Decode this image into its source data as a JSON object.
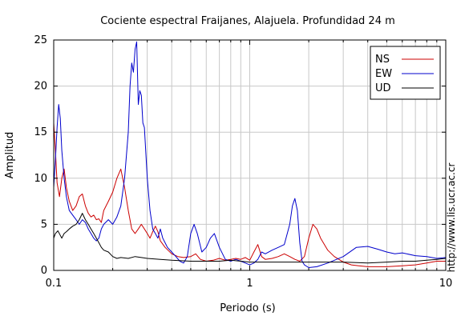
{
  "chart_data": {
    "type": "line",
    "title": "Cociente espectral Fraijanes, Alajuela. Profundidad 24 m",
    "xlabel": "Periodo (s)",
    "ylabel": "Amplitud",
    "xscale": "log",
    "xlim": [
      0.1,
      10
    ],
    "ylim": [
      0,
      25
    ],
    "grid": true,
    "legend_position": "top-right",
    "x_tick_labels": [
      {
        "value": 0.1,
        "label": "0.1"
      },
      {
        "value": 1,
        "label": "1"
      },
      {
        "value": 10,
        "label": "10"
      }
    ],
    "y_ticks": [
      0,
      5,
      10,
      15,
      20,
      25
    ],
    "y_tick_labels": [
      "0",
      "5",
      "10",
      "15",
      "20",
      "25"
    ],
    "side_note": "http://www.lis.ucr.ac.cr",
    "series": [
      {
        "name": "NS",
        "color": "#cc0000",
        "points": [
          [
            0.1,
            16.0
          ],
          [
            0.102,
            13.0
          ],
          [
            0.104,
            9.5
          ],
          [
            0.107,
            8.0
          ],
          [
            0.11,
            10.0
          ],
          [
            0.113,
            11.0
          ],
          [
            0.116,
            9.0
          ],
          [
            0.12,
            7.5
          ],
          [
            0.125,
            6.5
          ],
          [
            0.13,
            7.0
          ],
          [
            0.135,
            8.0
          ],
          [
            0.14,
            8.3
          ],
          [
            0.145,
            7.0
          ],
          [
            0.15,
            6.2
          ],
          [
            0.155,
            5.8
          ],
          [
            0.16,
            6.0
          ],
          [
            0.165,
            5.5
          ],
          [
            0.17,
            5.6
          ],
          [
            0.175,
            5.2
          ],
          [
            0.18,
            6.5
          ],
          [
            0.19,
            7.5
          ],
          [
            0.2,
            8.5
          ],
          [
            0.21,
            10.0
          ],
          [
            0.22,
            11.0
          ],
          [
            0.23,
            9.0
          ],
          [
            0.24,
            6.5
          ],
          [
            0.25,
            4.5
          ],
          [
            0.26,
            4.0
          ],
          [
            0.27,
            4.5
          ],
          [
            0.28,
            5.0
          ],
          [
            0.29,
            4.5
          ],
          [
            0.3,
            4.0
          ],
          [
            0.31,
            3.5
          ],
          [
            0.32,
            4.2
          ],
          [
            0.33,
            4.8
          ],
          [
            0.34,
            4.2
          ],
          [
            0.35,
            3.2
          ],
          [
            0.37,
            2.5
          ],
          [
            0.4,
            1.8
          ],
          [
            0.43,
            1.5
          ],
          [
            0.46,
            1.4
          ],
          [
            0.5,
            1.5
          ],
          [
            0.53,
            1.8
          ],
          [
            0.56,
            1.2
          ],
          [
            0.6,
            1.0
          ],
          [
            0.65,
            1.1
          ],
          [
            0.7,
            1.3
          ],
          [
            0.75,
            1.1
          ],
          [
            0.8,
            1.2
          ],
          [
            0.85,
            1.3
          ],
          [
            0.9,
            1.2
          ],
          [
            0.95,
            1.4
          ],
          [
            1.0,
            1.1
          ],
          [
            1.05,
            2.0
          ],
          [
            1.1,
            2.8
          ],
          [
            1.15,
            1.5
          ],
          [
            1.2,
            1.2
          ],
          [
            1.3,
            1.3
          ],
          [
            1.4,
            1.5
          ],
          [
            1.5,
            1.8
          ],
          [
            1.6,
            1.5
          ],
          [
            1.7,
            1.2
          ],
          [
            1.8,
            1.0
          ],
          [
            1.9,
            1.5
          ],
          [
            2.0,
            3.5
          ],
          [
            2.1,
            5.0
          ],
          [
            2.2,
            4.5
          ],
          [
            2.3,
            3.5
          ],
          [
            2.5,
            2.2
          ],
          [
            2.7,
            1.5
          ],
          [
            3.0,
            0.9
          ],
          [
            3.3,
            0.6
          ],
          [
            3.6,
            0.5
          ],
          [
            4.0,
            0.4
          ],
          [
            5.0,
            0.4
          ],
          [
            6.0,
            0.5
          ],
          [
            7.0,
            0.6
          ],
          [
            8.0,
            0.8
          ],
          [
            9.0,
            1.0
          ],
          [
            10.0,
            1.0
          ]
        ]
      },
      {
        "name": "EW",
        "color": "#0000cc",
        "points": [
          [
            0.1,
            9.0
          ],
          [
            0.102,
            12.0
          ],
          [
            0.104,
            15.5
          ],
          [
            0.106,
            18.0
          ],
          [
            0.108,
            16.5
          ],
          [
            0.11,
            13.0
          ],
          [
            0.113,
            10.0
          ],
          [
            0.116,
            8.0
          ],
          [
            0.12,
            6.5
          ],
          [
            0.125,
            6.0
          ],
          [
            0.13,
            5.5
          ],
          [
            0.135,
            5.0
          ],
          [
            0.14,
            5.5
          ],
          [
            0.145,
            5.2
          ],
          [
            0.15,
            4.5
          ],
          [
            0.155,
            4.0
          ],
          [
            0.16,
            3.5
          ],
          [
            0.165,
            3.2
          ],
          [
            0.17,
            3.5
          ],
          [
            0.175,
            4.5
          ],
          [
            0.18,
            5.0
          ],
          [
            0.19,
            5.5
          ],
          [
            0.2,
            5.0
          ],
          [
            0.21,
            5.8
          ],
          [
            0.22,
            7.0
          ],
          [
            0.23,
            10.0
          ],
          [
            0.24,
            15.0
          ],
          [
            0.245,
            20.0
          ],
          [
            0.25,
            22.5
          ],
          [
            0.255,
            21.5
          ],
          [
            0.26,
            24.0
          ],
          [
            0.265,
            24.8
          ],
          [
            0.27,
            18.0
          ],
          [
            0.275,
            19.5
          ],
          [
            0.28,
            19.0
          ],
          [
            0.285,
            16.0
          ],
          [
            0.29,
            15.5
          ],
          [
            0.3,
            10.0
          ],
          [
            0.31,
            6.5
          ],
          [
            0.32,
            4.5
          ],
          [
            0.33,
            4.0
          ],
          [
            0.34,
            3.5
          ],
          [
            0.35,
            4.5
          ],
          [
            0.36,
            3.5
          ],
          [
            0.37,
            3.0
          ],
          [
            0.38,
            2.5
          ],
          [
            0.4,
            2.0
          ],
          [
            0.42,
            1.5
          ],
          [
            0.44,
            1.0
          ],
          [
            0.46,
            0.8
          ],
          [
            0.48,
            1.5
          ],
          [
            0.5,
            4.0
          ],
          [
            0.52,
            5.0
          ],
          [
            0.54,
            4.0
          ],
          [
            0.57,
            2.0
          ],
          [
            0.6,
            2.5
          ],
          [
            0.63,
            3.5
          ],
          [
            0.66,
            4.0
          ],
          [
            0.7,
            2.5
          ],
          [
            0.75,
            1.2
          ],
          [
            0.8,
            1.0
          ],
          [
            0.85,
            1.2
          ],
          [
            0.9,
            1.0
          ],
          [
            0.95,
            0.8
          ],
          [
            1.0,
            0.6
          ],
          [
            1.05,
            0.8
          ],
          [
            1.1,
            1.2
          ],
          [
            1.15,
            2.0
          ],
          [
            1.2,
            1.8
          ],
          [
            1.3,
            2.2
          ],
          [
            1.4,
            2.5
          ],
          [
            1.5,
            2.8
          ],
          [
            1.6,
            5.0
          ],
          [
            1.65,
            7.0
          ],
          [
            1.7,
            7.8
          ],
          [
            1.75,
            6.5
          ],
          [
            1.8,
            3.0
          ],
          [
            1.85,
            1.0
          ],
          [
            1.9,
            0.6
          ],
          [
            2.0,
            0.3
          ],
          [
            2.2,
            0.4
          ],
          [
            2.5,
            0.8
          ],
          [
            3.0,
            1.5
          ],
          [
            3.5,
            2.5
          ],
          [
            4.0,
            2.6
          ],
          [
            4.5,
            2.3
          ],
          [
            5.0,
            2.0
          ],
          [
            5.5,
            1.8
          ],
          [
            6.0,
            1.9
          ],
          [
            7.0,
            1.6
          ],
          [
            8.0,
            1.5
          ],
          [
            9.0,
            1.3
          ],
          [
            10.0,
            1.4
          ]
        ]
      },
      {
        "name": "UD",
        "color": "#000000",
        "points": [
          [
            0.1,
            3.5
          ],
          [
            0.102,
            4.0
          ],
          [
            0.105,
            4.3
          ],
          [
            0.108,
            3.8
          ],
          [
            0.11,
            3.5
          ],
          [
            0.113,
            4.0
          ],
          [
            0.116,
            4.2
          ],
          [
            0.12,
            4.5
          ],
          [
            0.125,
            4.8
          ],
          [
            0.13,
            5.0
          ],
          [
            0.135,
            5.5
          ],
          [
            0.14,
            6.2
          ],
          [
            0.145,
            5.5
          ],
          [
            0.15,
            5.0
          ],
          [
            0.155,
            4.5
          ],
          [
            0.16,
            4.0
          ],
          [
            0.165,
            3.5
          ],
          [
            0.17,
            3.0
          ],
          [
            0.175,
            2.5
          ],
          [
            0.18,
            2.2
          ],
          [
            0.19,
            2.0
          ],
          [
            0.2,
            1.5
          ],
          [
            0.21,
            1.3
          ],
          [
            0.22,
            1.4
          ],
          [
            0.24,
            1.3
          ],
          [
            0.26,
            1.5
          ],
          [
            0.28,
            1.4
          ],
          [
            0.3,
            1.3
          ],
          [
            0.35,
            1.2
          ],
          [
            0.4,
            1.1
          ],
          [
            0.5,
            1.0
          ],
          [
            0.6,
            1.0
          ],
          [
            0.7,
            1.0
          ],
          [
            0.8,
            1.1
          ],
          [
            0.9,
            1.0
          ],
          [
            1.0,
            0.9
          ],
          [
            1.5,
            0.9
          ],
          [
            2.0,
            0.9
          ],
          [
            3.0,
            0.9
          ],
          [
            4.0,
            0.8
          ],
          [
            5.0,
            0.9
          ],
          [
            6.0,
            1.0
          ],
          [
            7.0,
            1.0
          ],
          [
            8.0,
            1.1
          ],
          [
            9.0,
            1.2
          ],
          [
            10.0,
            1.3
          ]
        ]
      }
    ]
  }
}
